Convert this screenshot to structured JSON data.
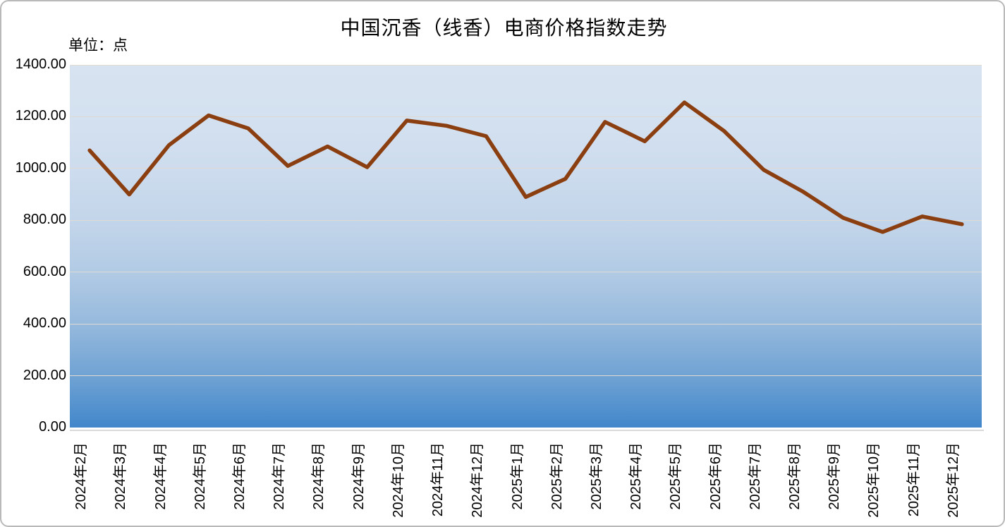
{
  "header": {
    "title": "中国沉香（线香）电商价格指数走势",
    "unit_label": "单位：点"
  },
  "chart_data": {
    "type": "line",
    "title": "中国沉香（线香）电商价格指数走势",
    "unit_label": "单位：点",
    "categories": [
      "2024年2月",
      "2024年3月",
      "2024年4月",
      "2024年5月",
      "2024年6月",
      "2024年7月",
      "2024年8月",
      "2024年9月",
      "2024年10月",
      "2024年11月",
      "2024年12月",
      "2025年1月",
      "2025年2月",
      "2025年3月",
      "2025年4月",
      "2025年5月",
      "2025年6月",
      "2025年7月",
      "2025年8月",
      "2025年9月",
      "2025年10月",
      "2025年11月",
      "2025年12月"
    ],
    "values": [
      1070,
      900,
      1090,
      1205,
      1155,
      1010,
      1085,
      1005,
      1185,
      1165,
      1125,
      890,
      960,
      1180,
      1105,
      1255,
      1145,
      995,
      910,
      810,
      755,
      815,
      785
    ],
    "ylim": [
      0,
      1400
    ],
    "ytick_step": 200,
    "ytick_labels": [
      "1400.00",
      "1200.00",
      "1000.00",
      "800.00",
      "600.00",
      "400.00",
      "200.00",
      "0.00"
    ],
    "xlabel": "",
    "ylabel": "",
    "grid": true,
    "legend_position": "none",
    "colors": {
      "line": "#8B3E0F",
      "plot_bg_top": "#D8E3F1",
      "plot_bg_bottom": "#4287CB",
      "gridline": "#DFDAD2",
      "axis_line": "#D9D9D9",
      "text": "#000000",
      "frame_border": "#B9B9B9"
    }
  }
}
